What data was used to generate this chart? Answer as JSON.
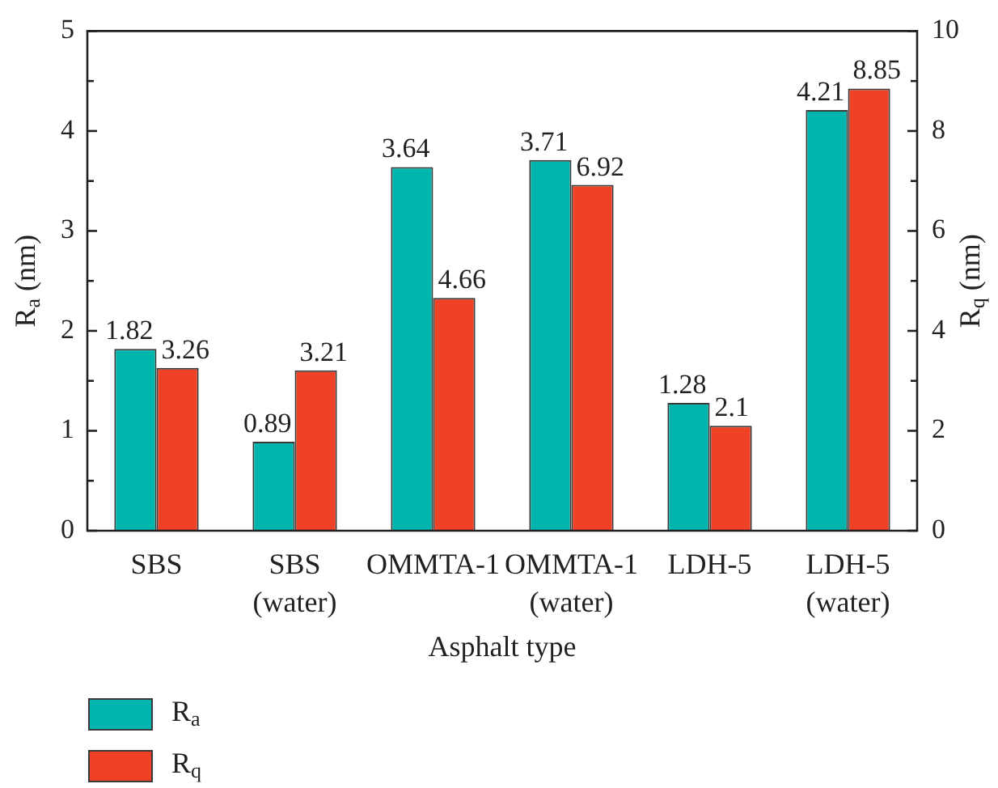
{
  "chart_data": {
    "type": "bar",
    "categories": [
      "SBS",
      "SBS\n(water)",
      "OMMTA-1",
      "OMMTA-1\n(water)",
      "LDH-5",
      "LDH-5\n(water)"
    ],
    "series": [
      {
        "name": "R$_{a}$",
        "color": "#00b5ad",
        "values": [
          1.82,
          0.89,
          3.64,
          3.71,
          1.28,
          4.21
        ]
      },
      {
        "name": "R$_{q}$",
        "color": "#ee4125",
        "values": [
          3.26,
          3.21,
          4.66,
          6.92,
          2.1,
          8.85
        ],
        "axis": "y2"
      }
    ],
    "xlabel": "Asphalt type",
    "ylabel": "R$_{a}$ (nm)",
    "y2label": "R$_{q}$ (nm)",
    "ylim": [
      0,
      5
    ],
    "yticks": [
      0,
      {
        "value": 0.5,
        "label": null
      },
      1,
      {
        "value": 1.5,
        "label": null
      },
      2,
      {
        "value": 2.5,
        "label": null
      },
      3,
      {
        "value": 3.5,
        "label": null
      },
      4,
      {
        "value": 4.5,
        "label": null
      },
      5
    ],
    "y2lim": [
      0,
      10
    ],
    "y2ticks": [
      0,
      {
        "value": 1,
        "label": null
      },
      2,
      {
        "value": 3,
        "label": null
      },
      4,
      {
        "value": 5,
        "label": null
      },
      6,
      {
        "value": 7,
        "label": null
      },
      8,
      {
        "value": 9,
        "label": null
      },
      10
    ],
    "data_labels": true,
    "legend": "bottom left"
  }
}
